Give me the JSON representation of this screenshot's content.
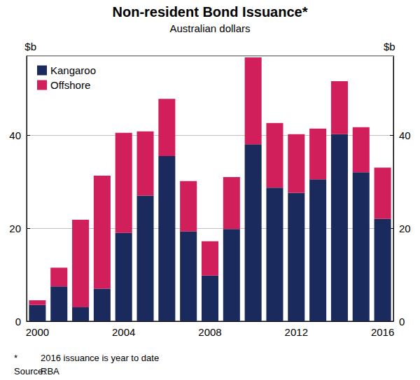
{
  "chart_data": {
    "type": "bar",
    "title": "Non-resident Bond Issuance*",
    "subtitle": "Australian dollars",
    "ylabel": "$b",
    "categories": [
      "2000",
      null,
      null,
      null,
      "2004",
      null,
      null,
      null,
      "2008",
      null,
      null,
      null,
      "2012",
      null,
      null,
      null,
      "2016"
    ],
    "series": [
      {
        "name": "Kangaroo",
        "color": "#1b2a5c",
        "values": [
          3.5,
          7.5,
          3.0,
          7.0,
          19.0,
          27.0,
          35.5,
          19.3,
          9.8,
          19.8,
          38.0,
          28.7,
          27.6,
          30.5,
          40.2,
          32.0,
          22.0
        ]
      },
      {
        "name": "Offshore",
        "color": "#d11f5b",
        "values": [
          1.0,
          4.0,
          18.8,
          24.3,
          21.5,
          13.8,
          12.3,
          10.8,
          7.4,
          11.2,
          18.7,
          13.9,
          12.6,
          10.9,
          11.4,
          9.7,
          11.0
        ]
      }
    ],
    "stacked": true,
    "ylim": [
      0,
      57
    ],
    "yticks": [
      0,
      20,
      40
    ],
    "grid": true,
    "legend": "top-left",
    "footnote_marker": "*",
    "footnote": "2016 issuance is year to date",
    "source_label": "Source:",
    "source": "RBA"
  }
}
